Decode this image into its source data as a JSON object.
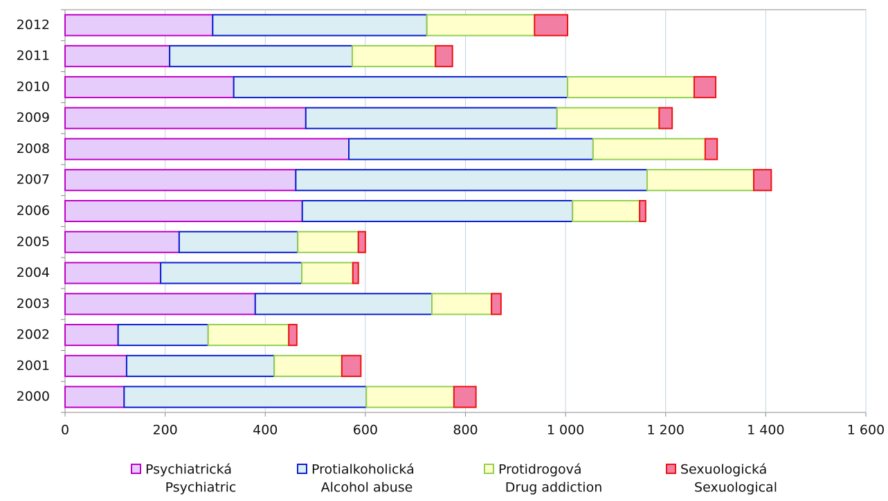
{
  "chart_data": {
    "type": "stacked-bar",
    "orientation": "horizontal",
    "categories": [
      "2012",
      "2011",
      "2010",
      "2009",
      "2008",
      "2007",
      "2006",
      "2005",
      "2004",
      "2003",
      "2002",
      "2001",
      "2000"
    ],
    "series": [
      {
        "name": "Psychiatrická",
        "subname": "Psychiatric",
        "color": "#e6ccfa",
        "stroke": "#c000c8",
        "values": [
          295,
          209,
          337,
          481,
          567,
          461,
          474,
          228,
          191,
          380,
          106,
          123,
          118
        ]
      },
      {
        "name": "Protialkoholická",
        "subname": "Alcohol abuse",
        "color": "#daeef3",
        "stroke": "#0a1ed0",
        "values": [
          428,
          365,
          667,
          502,
          488,
          702,
          540,
          237,
          282,
          353,
          180,
          295,
          484
        ]
      },
      {
        "name": "Protidrogová",
        "subname": "Drug addiction",
        "color": "#ffffcc",
        "stroke": "#92d050",
        "values": [
          215,
          166,
          253,
          204,
          224,
          213,
          134,
          121,
          102,
          119,
          161,
          135,
          175
        ]
      },
      {
        "name": "Sexuologická",
        "subname": "Sexuological",
        "color": "#f27ea4",
        "stroke": "#ee1111",
        "values": [
          66,
          34,
          43,
          26,
          24,
          35,
          12,
          14,
          11,
          19,
          16,
          38,
          44
        ]
      }
    ],
    "xlim": [
      0,
      1600
    ],
    "xticks": [
      0,
      200,
      400,
      600,
      800,
      {
        "value": 1000,
        "label": "1 000"
      },
      {
        "value": 1200,
        "label": "1 200"
      },
      {
        "value": 1400,
        "label": "1 400"
      },
      {
        "value": 1600,
        "label": "1 600"
      }
    ],
    "grid": true,
    "legend": "bottom"
  }
}
